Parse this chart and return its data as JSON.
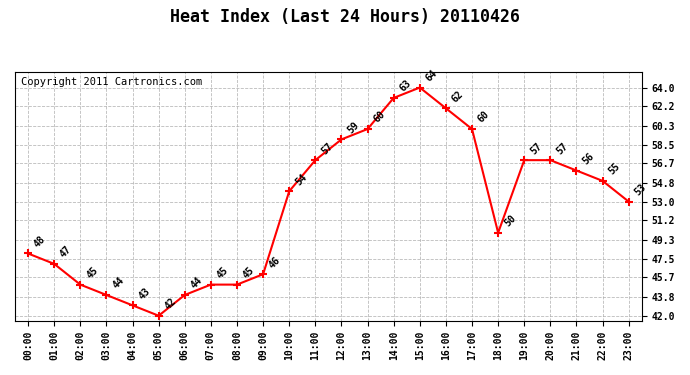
{
  "title": "Heat Index (Last 24 Hours) 20110426",
  "copyright": "Copyright 2011 Cartronics.com",
  "x_labels": [
    "00:00",
    "01:00",
    "02:00",
    "03:00",
    "04:00",
    "05:00",
    "06:00",
    "07:00",
    "08:00",
    "09:00",
    "10:00",
    "11:00",
    "12:00",
    "13:00",
    "14:00",
    "15:00",
    "16:00",
    "17:00",
    "18:00",
    "19:00",
    "20:00",
    "21:00",
    "22:00",
    "23:00"
  ],
  "hours": [
    0,
    1,
    2,
    3,
    4,
    5,
    6,
    7,
    8,
    9,
    10,
    11,
    12,
    13,
    14,
    15,
    16,
    17,
    18,
    19,
    20,
    21,
    22,
    23
  ],
  "values": [
    48,
    47,
    45,
    44,
    43,
    42,
    44,
    45,
    45,
    46,
    54,
    57,
    59,
    60,
    63,
    64,
    62,
    60,
    50,
    57,
    57,
    56,
    55,
    53
  ],
  "line_color": "#ff0000",
  "bg_color": "#ffffff",
  "grid_color": "#aaaaaa",
  "yticks": [
    42.0,
    43.8,
    45.7,
    47.5,
    49.3,
    51.2,
    53.0,
    54.8,
    56.7,
    58.5,
    60.3,
    62.2,
    64.0
  ],
  "ylim": [
    41.5,
    65.5
  ],
  "title_fontsize": 12,
  "copyright_fontsize": 7.5
}
